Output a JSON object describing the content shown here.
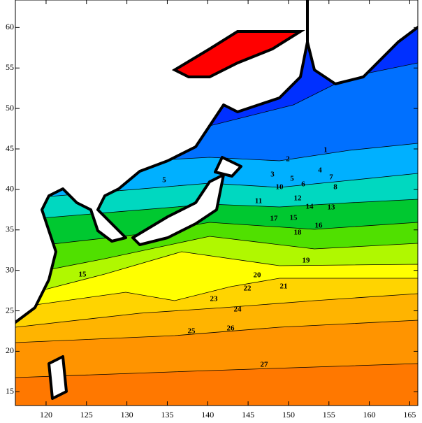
{
  "chart_data": {
    "type": "contour",
    "xlim": [
      116.2,
      166
    ],
    "ylim": [
      13.3,
      63.4
    ],
    "xticks": [
      120,
      125,
      130,
      135,
      140,
      145,
      150,
      155,
      160,
      165
    ],
    "yticks": [
      15,
      20,
      25,
      30,
      35,
      40,
      45,
      50,
      55,
      60
    ],
    "contour_labels": [
      1,
      2,
      3,
      4,
      5,
      6,
      7,
      8,
      10,
      11,
      12,
      13,
      14,
      15,
      16,
      17,
      18,
      19,
      20,
      21,
      22,
      23,
      24,
      25,
      26,
      27,
      15,
      5
    ]
  }
}
